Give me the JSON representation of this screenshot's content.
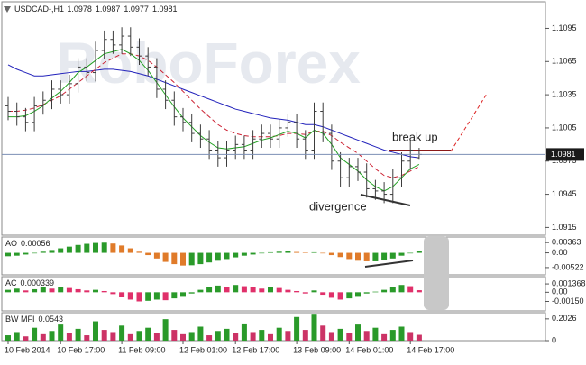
{
  "chart_data": [
    {
      "type": "ohlc",
      "title": "USDCAD-,H1",
      "watermark": "RoboForex",
      "annotations": [
        "break up",
        "divergence"
      ],
      "categories": [
        "10 Feb 2014",
        null,
        null,
        null,
        null,
        null,
        "10 Feb 17:00",
        null,
        null,
        null,
        null,
        null,
        null,
        "11 Feb 09:00",
        null,
        null,
        null,
        null,
        null,
        null,
        "12 Feb 01:00",
        null,
        null,
        null,
        null,
        null,
        "12 Feb 17:00",
        null,
        null,
        null,
        null,
        null,
        null,
        "13 Feb 09:00",
        null,
        null,
        null,
        null,
        null,
        "14 Feb 01:00",
        null,
        null,
        null,
        null,
        null,
        null,
        "14 Feb 17:00",
        null
      ],
      "open": [
        1.1025,
        1.102,
        1.1015,
        1.101,
        1.1025,
        1.103,
        1.104,
        1.1035,
        1.1045,
        1.106,
        1.1055,
        1.1075,
        1.1085,
        1.108,
        1.1088,
        1.1078,
        1.107,
        1.106,
        1.104,
        1.103,
        1.1015,
        1.101,
        1.1,
        1.0995,
        1.0985,
        1.0978,
        1.0985,
        1.099,
        1.0985,
        1.0995,
        1.1,
        1.0995,
        1.1005,
        1.101,
        1.0995,
        1.0985,
        1.102,
        1.1,
        1.0975,
        1.096,
        1.097,
        1.0965,
        1.095,
        1.0948,
        1.0945,
        1.096,
        1.0975,
        1.0978
      ],
      "high": [
        1.1033,
        1.1028,
        1.1023,
        1.1033,
        1.1038,
        1.1048,
        1.1048,
        1.1053,
        1.1068,
        1.1068,
        1.1083,
        1.1093,
        1.1093,
        1.1096,
        1.1096,
        1.1086,
        1.1078,
        1.1068,
        1.1048,
        1.1038,
        1.1023,
        1.1018,
        1.1008,
        1.1003,
        1.0993,
        1.0993,
        1.0998,
        1.0998,
        1.1003,
        1.1008,
        1.1008,
        1.1013,
        1.1018,
        1.1018,
        1.1003,
        1.1028,
        1.1028,
        1.1008,
        1.0983,
        1.0978,
        1.0978,
        1.0973,
        1.0958,
        1.0956,
        1.0968,
        1.0983,
        1.0993,
        1.0987
      ],
      "low": [
        1.1012,
        1.1007,
        1.1002,
        1.1002,
        1.1017,
        1.1022,
        1.1027,
        1.1027,
        1.1037,
        1.1047,
        1.1047,
        1.1067,
        1.1072,
        1.1072,
        1.107,
        1.1062,
        1.1052,
        1.1032,
        1.1022,
        1.1007,
        1.1002,
        1.0992,
        1.0987,
        1.0977,
        1.097,
        1.097,
        1.0977,
        1.0977,
        1.0977,
        1.0987,
        1.0987,
        1.0987,
        1.0997,
        1.0987,
        1.0977,
        1.0977,
        1.0992,
        1.0967,
        1.0952,
        1.0952,
        1.0957,
        1.0942,
        1.094,
        1.0937,
        1.0937,
        1.0952,
        1.0967,
        1.0977
      ],
      "close": [
        1.102,
        1.1015,
        1.101,
        1.1025,
        1.103,
        1.104,
        1.1035,
        1.1045,
        1.106,
        1.1055,
        1.1075,
        1.1085,
        1.108,
        1.1088,
        1.1078,
        1.107,
        1.106,
        1.104,
        1.103,
        1.1015,
        1.101,
        1.1,
        1.0995,
        1.0985,
        1.0978,
        1.0985,
        1.099,
        1.0985,
        1.0995,
        1.1,
        1.0995,
        1.1005,
        1.101,
        1.0995,
        1.0985,
        1.102,
        1.1,
        1.0975,
        1.096,
        1.097,
        1.0965,
        1.095,
        1.0948,
        1.0945,
        1.096,
        1.0975,
        1.0985,
        1.0981
      ],
      "color": "#3c3c3c",
      "price_line_color": "#7b8fb5",
      "series": [
        {
          "color": "#2222bb",
          "dashed": false,
          "values": [
            1.1062,
            1.1058,
            1.1055,
            1.1052,
            1.1052,
            1.1053,
            1.1054,
            1.1055,
            1.1056,
            1.1056,
            1.1057,
            1.1058,
            1.1058,
            1.1057,
            1.1056,
            1.1054,
            1.1052,
            1.1049,
            1.1046,
            1.1043,
            1.104,
            1.1037,
            1.1034,
            1.1031,
            1.1028,
            1.1025,
            1.1022,
            1.102,
            1.1018,
            1.1016,
            1.1014,
            1.1013,
            1.1012,
            1.101,
            1.1008,
            1.1008,
            1.1006,
            1.1003,
            1.1,
            1.0997,
            1.0994,
            1.0991,
            1.0988,
            1.0985,
            1.0983,
            1.0981,
            1.0979,
            1.0978
          ]
        },
        {
          "color": "#cc2233",
          "dashed": true,
          "values": [
            1.102,
            1.102,
            1.1021,
            1.1023,
            1.1026,
            1.103,
            1.1034,
            1.104,
            1.1046,
            1.1052,
            1.1058,
            1.1064,
            1.1068,
            1.1072,
            1.1072,
            1.107,
            1.1066,
            1.106,
            1.1053,
            1.1046,
            1.1038,
            1.103,
            1.1022,
            1.1015,
            1.1008,
            1.1003,
            1.1,
            1.0998,
            1.0997,
            1.0997,
            1.0997,
            1.0998,
            1.1,
            1.1,
            1.0999,
            1.1002,
            1.1002,
            1.0998,
            1.0992,
            1.0987,
            1.0982,
            1.0975,
            1.0968,
            1.0962,
            1.096,
            1.0962,
            1.0966,
            1.097
          ]
        },
        {
          "color": "#22a022",
          "dashed": false,
          "values": [
            1.1015,
            1.1015,
            1.1016,
            1.102,
            1.1025,
            1.1032,
            1.1038,
            1.1046,
            1.1055,
            1.106,
            1.1066,
            1.1072,
            1.1074,
            1.1076,
            1.1072,
            1.1066,
            1.1057,
            1.1046,
            1.1035,
            1.1024,
            1.1014,
            1.1006,
            1.0998,
            1.0992,
            1.0987,
            1.0986,
            1.0987,
            1.0988,
            1.0991,
            1.0994,
            1.0996,
            1.0999,
            1.1002,
            1.1,
            1.0996,
            1.1003,
            1.1,
            1.099,
            1.0978,
            1.0972,
            1.0966,
            1.0958,
            1.0952,
            1.0948,
            1.0952,
            1.096,
            1.0968,
            1.0972
          ]
        }
      ],
      "ylim": [
        1.0908,
        1.1119
      ],
      "yticks": [
        1.1095,
        1.1065,
        1.1035,
        1.1005,
        1.0975,
        1.0945,
        1.0915
      ]
    },
    {
      "type": "bar",
      "title": "AO",
      "current": 0.00056,
      "up_color": "#2a9a2a",
      "down_color": "#e07b2a",
      "values": [
        -0.0012,
        -0.001,
        -0.0006,
        -0.0002,
        0.0004,
        0.001,
        0.0016,
        0.0022,
        0.0028,
        0.0032,
        0.0035,
        0.0036,
        0.0033,
        0.0026,
        0.0016,
        0.0004,
        -0.0008,
        -0.002,
        -0.0032,
        -0.004,
        -0.0045,
        -0.0044,
        -0.004,
        -0.0034,
        -0.0028,
        -0.0022,
        -0.0016,
        -0.001,
        -0.0006,
        -0.0002,
        0.0002,
        0.0004,
        0.0005,
        0.0003,
        0.0001,
        0.0002,
        -0.0002,
        -0.0008,
        -0.0015,
        -0.0022,
        -0.0028,
        -0.003,
        -0.003,
        -0.0027,
        -0.002,
        -0.001,
        -0.0002,
        0.00056
      ],
      "ylim": [
        -0.0078,
        0.0056
      ],
      "yticks": [
        0.00363,
        {
          "value": 0,
          "label": "0.00"
        },
        -0.00522
      ]
    },
    {
      "type": "bar",
      "title": "AC",
      "current": 0.000339,
      "up_color": "#2a9a2a",
      "down_color": "#e0306a",
      "values": [
        0.0004,
        0.0006,
        0.0003,
        0.0005,
        0.0008,
        0.0006,
        0.0009,
        0.0007,
        0.0005,
        0.0003,
        0.0004,
        0.0002,
        -0.0003,
        -0.0008,
        -0.0012,
        -0.0015,
        -0.0014,
        -0.0012,
        -0.0013,
        -0.001,
        -0.0006,
        -0.0002,
        0.0004,
        0.0008,
        0.0011,
        0.0009,
        0.0012,
        0.001,
        0.0008,
        0.0006,
        0.0009,
        0.0007,
        0.0004,
        0.0002,
        -0.0002,
        0.0003,
        -0.0004,
        -0.0009,
        -0.0012,
        -0.001,
        -0.0006,
        -0.0002,
        0.0001,
        0.0004,
        0.0008,
        0.0012,
        0.001,
        0.000339
      ],
      "ylim": [
        -0.00305,
        0.00256
      ],
      "yticks": [
        0.001368,
        {
          "value": 0,
          "label": "0.00"
        },
        {
          "value": -0.0015,
          "label": "-0.00150"
        }
      ]
    },
    {
      "type": "bar",
      "title": "BW MFI",
      "current": 0.0543,
      "up_color": "#2a9a2a",
      "down_color": "#cc3366",
      "values": [
        0.05,
        0.08,
        0.04,
        0.12,
        0.06,
        0.09,
        0.15,
        0.07,
        0.11,
        0.05,
        0.18,
        0.1,
        0.08,
        0.14,
        0.06,
        0.09,
        0.12,
        0.07,
        0.2,
        0.1,
        0.06,
        0.08,
        0.13,
        0.05,
        0.09,
        0.11,
        0.07,
        0.16,
        0.08,
        0.1,
        0.06,
        0.12,
        0.09,
        0.22,
        0.1,
        0.25,
        0.14,
        0.08,
        0.11,
        0.07,
        0.15,
        0.09,
        0.12,
        0.06,
        0.1,
        0.13,
        0.08,
        0.0543
      ],
      "ylim": [
        0,
        0.26
      ],
      "yticks": [
        0.2026,
        0
      ]
    }
  ]
}
